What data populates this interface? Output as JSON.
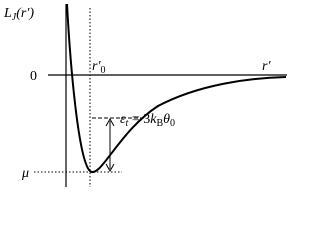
{
  "axis_label": {
    "symbol": "L",
    "sub": "J",
    "arg": "(r′)"
  },
  "zero_label": "0",
  "r0_label": {
    "symbol": "r′",
    "sub": "0"
  },
  "r_label": "r′",
  "mu_label": "μ",
  "epsilon_label": {
    "symbol": "ε",
    "sub": "t",
    "eq": " = 3",
    "k": "k",
    "k_sub": "B",
    "theta": "θ",
    "theta_sub": "0"
  }
}
